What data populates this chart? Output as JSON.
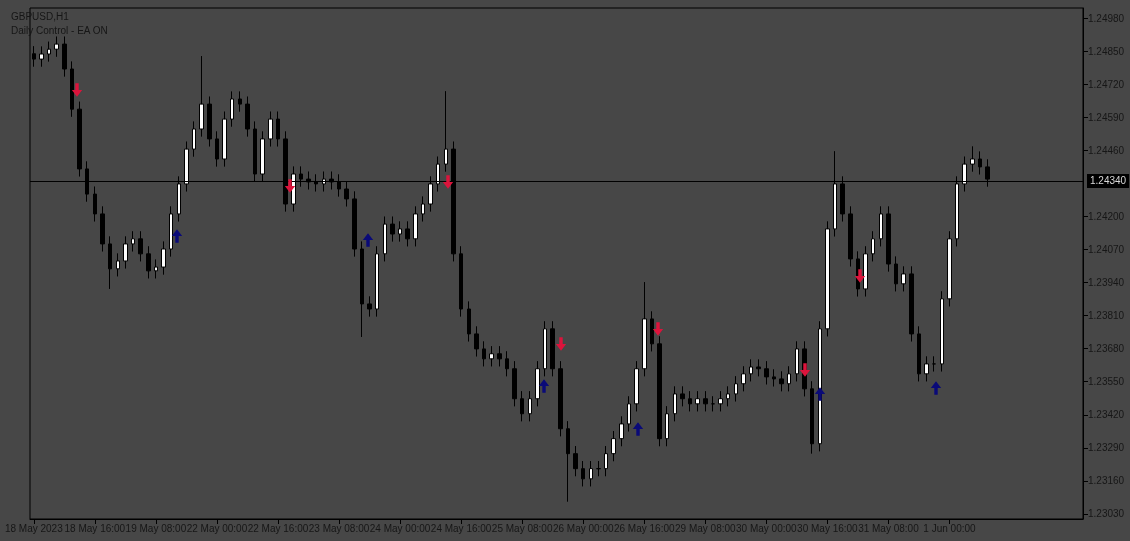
{
  "chart_data": {
    "type": "candlestick",
    "title": "GBPUSD,H1",
    "subtitle": "Daily Control - EA ON",
    "categories": [
      "18 May 2023",
      null,
      null,
      null,
      null,
      null,
      null,
      null,
      "18 May 16:00",
      null,
      null,
      null,
      null,
      null,
      null,
      null,
      "19 May 08:00",
      null,
      null,
      null,
      null,
      null,
      null,
      null,
      "22 May 00:00",
      null,
      null,
      null,
      null,
      null,
      null,
      null,
      "22 May 16:00",
      null,
      null,
      null,
      null,
      null,
      null,
      null,
      "23 May 08:00",
      null,
      null,
      null,
      null,
      null,
      null,
      null,
      "24 May 00:00",
      null,
      null,
      null,
      null,
      null,
      null,
      null,
      "24 May 16:00",
      null,
      null,
      null,
      null,
      null,
      null,
      null,
      "25 May 08:00",
      null,
      null,
      null,
      null,
      null,
      null,
      null,
      "26 May 00:00",
      null,
      null,
      null,
      null,
      null,
      null,
      null,
      "26 May 16:00",
      null,
      null,
      null,
      null,
      null,
      null,
      null,
      "29 May 08:00",
      null,
      null,
      null,
      null,
      null,
      null,
      null,
      "30 May 00:00",
      null,
      null,
      null,
      null,
      null,
      null,
      null,
      "30 May 16:00",
      null,
      null,
      null,
      null,
      null,
      null,
      null,
      "31 May 08:00",
      null,
      null,
      null,
      null,
      null,
      null,
      null,
      "1 Jun 00:00",
      null,
      null,
      null,
      null,
      null,
      null,
      null,
      null,
      null,
      null,
      null,
      null,
      null,
      null,
      null,
      null,
      null
    ],
    "ohlc": [
      [
        1.2484,
        1.2487,
        1.24789,
        1.24819
      ],
      [
        1.24819,
        1.24869,
        1.24789,
        1.24839
      ],
      [
        1.24839,
        1.24888,
        1.24809,
        1.24858
      ],
      [
        1.24858,
        1.24908,
        1.24828,
        1.24878
      ],
      [
        1.24878,
        1.24908,
        1.2475,
        1.2478
      ],
      [
        1.2478,
        1.2481,
        1.24592,
        1.24622
      ],
      [
        1.24622,
        1.24652,
        1.24357,
        1.24387
      ],
      [
        1.24387,
        1.24417,
        1.24258,
        1.24288
      ],
      [
        1.24288,
        1.24318,
        1.2418,
        1.2421
      ],
      [
        1.2421,
        1.2424,
        1.24062,
        1.24092
      ],
      [
        1.24092,
        1.24122,
        1.23915,
        1.23994
      ],
      [
        1.23994,
        1.24055,
        1.23964,
        1.24025
      ],
      [
        1.24025,
        1.24122,
        1.23995,
        1.24092
      ],
      [
        1.24092,
        1.24142,
        1.24062,
        1.24112
      ],
      [
        1.24112,
        1.24142,
        1.24023,
        1.24053
      ],
      [
        1.24053,
        1.24083,
        1.23956,
        1.23986
      ],
      [
        1.23986,
        1.24031,
        1.23956,
        1.24001
      ],
      [
        1.24001,
        1.24102,
        1.23971,
        1.24072
      ],
      [
        1.24072,
        1.2424,
        1.24042,
        1.2421
      ],
      [
        1.2421,
        1.24358,
        1.2418,
        1.24328
      ],
      [
        1.24328,
        1.24495,
        1.24298,
        1.24465
      ],
      [
        1.24465,
        1.24574,
        1.24435,
        1.24544
      ],
      [
        1.24544,
        1.24831,
        1.24514,
        1.24642
      ],
      [
        1.24642,
        1.24672,
        1.24475,
        1.24505
      ],
      [
        1.24505,
        1.24535,
        1.24396,
        1.24426
      ],
      [
        1.24426,
        1.24613,
        1.24396,
        1.24583
      ],
      [
        1.24583,
        1.24692,
        1.24553,
        1.24662
      ],
      [
        1.24662,
        1.24692,
        1.24612,
        1.24642
      ],
      [
        1.24642,
        1.24672,
        1.24514,
        1.24544
      ],
      [
        1.24544,
        1.24574,
        1.24337,
        1.24367
      ],
      [
        1.24367,
        1.24535,
        1.24337,
        1.24505
      ],
      [
        1.24505,
        1.24613,
        1.24475,
        1.24583
      ],
      [
        1.24583,
        1.24613,
        1.24475,
        1.24505
      ],
      [
        1.24505,
        1.24535,
        1.24219,
        1.24249
      ],
      [
        1.24249,
        1.24397,
        1.24219,
        1.24367
      ],
      [
        1.24367,
        1.24397,
        1.24317,
        1.24347
      ],
      [
        1.24347,
        1.24377,
        1.24306,
        1.24336
      ],
      [
        1.24336,
        1.24366,
        1.24298,
        1.24328
      ],
      [
        1.24328,
        1.24377,
        1.24298,
        1.24347
      ],
      [
        1.24347,
        1.24377,
        1.24306,
        1.24336
      ],
      [
        1.24336,
        1.24366,
        1.24278,
        1.24308
      ],
      [
        1.24308,
        1.24338,
        1.24239,
        1.24269
      ],
      [
        1.24269,
        1.24299,
        1.24042,
        1.24072
      ],
      [
        1.24072,
        1.24102,
        1.23726,
        1.23856
      ],
      [
        1.23856,
        1.23886,
        1.23806,
        1.23836
      ],
      [
        1.23836,
        1.24083,
        1.23806,
        1.24053
      ],
      [
        1.24053,
        1.242,
        1.24023,
        1.2417
      ],
      [
        1.2417,
        1.242,
        1.24101,
        1.24131
      ],
      [
        1.24131,
        1.24181,
        1.24101,
        1.24151
      ],
      [
        1.24151,
        1.24181,
        1.24082,
        1.24112
      ],
      [
        1.24112,
        1.2424,
        1.24082,
        1.2421
      ],
      [
        1.2421,
        1.24279,
        1.2418,
        1.24249
      ],
      [
        1.24249,
        1.24358,
        1.24219,
        1.24328
      ],
      [
        1.24328,
        1.24436,
        1.24298,
        1.24406
      ],
      [
        1.24406,
        1.24693,
        1.24376,
        1.24465
      ],
      [
        1.24465,
        1.24495,
        1.24023,
        1.24053
      ],
      [
        1.24053,
        1.24083,
        1.23806,
        1.23836
      ],
      [
        1.23836,
        1.23866,
        1.23708,
        1.23738
      ],
      [
        1.23738,
        1.23768,
        1.23649,
        1.23679
      ],
      [
        1.23679,
        1.23709,
        1.2361,
        1.2364
      ],
      [
        1.2364,
        1.2369,
        1.2361,
        1.2366
      ],
      [
        1.2366,
        1.2369,
        1.2361,
        1.2364
      ],
      [
        1.2364,
        1.2367,
        1.23571,
        1.23601
      ],
      [
        1.23601,
        1.23631,
        1.23453,
        1.23483
      ],
      [
        1.23483,
        1.23513,
        1.23394,
        1.23424
      ],
      [
        1.23424,
        1.23513,
        1.23394,
        1.23483
      ],
      [
        1.23483,
        1.23631,
        1.23453,
        1.23601
      ],
      [
        1.23601,
        1.23788,
        1.23571,
        1.23758
      ],
      [
        1.23758,
        1.23788,
        1.23571,
        1.23601
      ],
      [
        1.23601,
        1.23631,
        1.23335,
        1.23365
      ],
      [
        1.23365,
        1.23395,
        1.23078,
        1.23267
      ],
      [
        1.23267,
        1.23297,
        1.23178,
        1.23208
      ],
      [
        1.23208,
        1.23238,
        1.23138,
        1.23168
      ],
      [
        1.23168,
        1.23238,
        1.23138,
        1.23208
      ],
      [
        1.23208,
        1.23238,
        1.23178,
        1.23208
      ],
      [
        1.23208,
        1.23297,
        1.23178,
        1.23267
      ],
      [
        1.23267,
        1.23356,
        1.23237,
        1.23326
      ],
      [
        1.23326,
        1.23414,
        1.23296,
        1.23384
      ],
      [
        1.23384,
        1.23493,
        1.23354,
        1.23463
      ],
      [
        1.23463,
        1.23631,
        1.23433,
        1.23601
      ],
      [
        1.23601,
        1.23942,
        1.23571,
        1.23797
      ],
      [
        1.23797,
        1.23827,
        1.23669,
        1.23699
      ],
      [
        1.23699,
        1.23729,
        1.23296,
        1.23326
      ],
      [
        1.23326,
        1.23454,
        1.23296,
        1.23424
      ],
      [
        1.23424,
        1.23532,
        1.23394,
        1.23502
      ],
      [
        1.23502,
        1.23532,
        1.23453,
        1.23483
      ],
      [
        1.23483,
        1.23513,
        1.23433,
        1.23463
      ],
      [
        1.23463,
        1.23513,
        1.23433,
        1.23483
      ],
      [
        1.23483,
        1.23513,
        1.23433,
        1.23463
      ],
      [
        1.23463,
        1.23493,
        1.23433,
        1.23463
      ],
      [
        1.23463,
        1.23513,
        1.23433,
        1.23483
      ],
      [
        1.23483,
        1.23532,
        1.23453,
        1.23502
      ],
      [
        1.23502,
        1.23572,
        1.23472,
        1.23542
      ],
      [
        1.23542,
        1.23611,
        1.23512,
        1.23581
      ],
      [
        1.23581,
        1.23638,
        1.23551,
        1.23608
      ],
      [
        1.23608,
        1.23638,
        1.23571,
        1.23601
      ],
      [
        1.23601,
        1.23631,
        1.23539,
        1.23569
      ],
      [
        1.23569,
        1.23599,
        1.23531,
        1.23561
      ],
      [
        1.23561,
        1.23591,
        1.23512,
        1.23542
      ],
      [
        1.23542,
        1.23611,
        1.23512,
        1.23581
      ],
      [
        1.23581,
        1.23709,
        1.23551,
        1.23679
      ],
      [
        1.23679,
        1.23709,
        1.23492,
        1.23522
      ],
      [
        1.23522,
        1.23552,
        1.23267,
        1.23306
      ],
      [
        1.23306,
        1.23788,
        1.23276,
        1.23758
      ],
      [
        1.23758,
        1.24181,
        1.23728,
        1.24151
      ],
      [
        1.24151,
        1.24457,
        1.24121,
        1.24328
      ],
      [
        1.24328,
        1.24358,
        1.2418,
        1.2421
      ],
      [
        1.2421,
        1.2424,
        1.24003,
        1.24033
      ],
      [
        1.24033,
        1.24063,
        1.23885,
        1.23915
      ],
      [
        1.23915,
        1.24083,
        1.23885,
        1.24053
      ],
      [
        1.24053,
        1.24142,
        1.24023,
        1.24112
      ],
      [
        1.24112,
        1.2424,
        1.24082,
        1.2421
      ],
      [
        1.2421,
        1.2424,
        1.23983,
        1.24013
      ],
      [
        1.24013,
        1.24043,
        1.23905,
        1.23935
      ],
      [
        1.23935,
        1.24004,
        1.23905,
        1.23974
      ],
      [
        1.23974,
        1.24004,
        1.23708,
        1.23738
      ],
      [
        1.23738,
        1.23768,
        1.23551,
        1.23581
      ],
      [
        1.23581,
        1.2365,
        1.23551,
        1.2362
      ],
      [
        1.2362,
        1.2365,
        1.2359,
        1.2362
      ],
      [
        1.2362,
        1.23906,
        1.2359,
        1.23876
      ],
      [
        1.23876,
        1.24142,
        1.23846,
        1.24112
      ],
      [
        1.24112,
        1.24358,
        1.24082,
        1.24328
      ],
      [
        1.24328,
        1.24436,
        1.24298,
        1.24406
      ],
      [
        1.24406,
        1.24476,
        1.24376,
        1.24426
      ],
      [
        1.24426,
        1.24456,
        1.24365,
        1.24395
      ],
      [
        1.24395,
        1.24425,
        1.24317,
        1.24347
      ],
      null,
      null,
      null,
      null,
      null,
      null,
      null,
      null,
      null,
      null,
      null,
      null
    ],
    "ylim": [
      1.2301,
      1.2502
    ],
    "yticks": [
      {
        "value": 1.2303,
        "label": "1.23030"
      },
      {
        "value": 1.2316,
        "label": "1.23160"
      },
      {
        "value": 1.2329,
        "label": "1.23290"
      },
      {
        "value": 1.2342,
        "label": "1.23420"
      },
      {
        "value": 1.2355,
        "label": "1.23550"
      },
      {
        "value": 1.2368,
        "label": "1.23680"
      },
      {
        "value": 1.2381,
        "label": "1.23810"
      },
      {
        "value": 1.2394,
        "label": "1.23940"
      },
      {
        "value": 1.2407,
        "label": "1.24070"
      },
      {
        "value": 1.242,
        "label": "1.24200"
      },
      {
        "value": 1.2446,
        "label": "1.24460"
      },
      {
        "value": 1.2459,
        "label": "1.24590"
      },
      {
        "value": 1.2472,
        "label": "1.24720"
      },
      {
        "value": 1.2485,
        "label": "1.24850"
      },
      {
        "value": 1.2498,
        "label": "1.24980"
      }
    ],
    "ref_lines": [
      {
        "axis": "y",
        "value": 1.2434,
        "label": "1.24340",
        "color": "#000000"
      }
    ],
    "grid": false
  }
}
